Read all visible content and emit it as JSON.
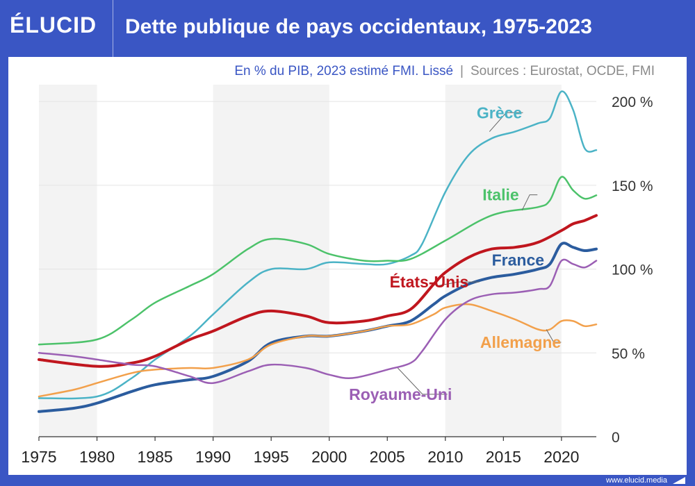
{
  "logo": {
    "text": "ÉLUCID"
  },
  "title": "Dette publique de pays occidentaux, 1975-2023",
  "subtitle": {
    "main": "En % du PIB, 2023 estimé FMI. Lissé",
    "separator": "|",
    "sources": "Sources : Eurostat, OCDE, FMI"
  },
  "footer": {
    "site": "www.elucid.media"
  },
  "colors": {
    "brand": "#3a56c4",
    "greece": "#4bb3c6",
    "italy": "#4cc26a",
    "usa": "#c0161e",
    "france": "#2b5c9e",
    "germany": "#f2a04b",
    "uk": "#9b5fb4"
  },
  "chart_data": {
    "type": "line",
    "title": "Dette publique de pays occidentaux, 1975-2023",
    "subtitle": "En % du PIB, 2023 estimé FMI. Lissé",
    "xlim": [
      1975,
      2023
    ],
    "ylim": [
      0,
      210
    ],
    "x_ticks": [
      1975,
      1980,
      1985,
      1990,
      1995,
      2000,
      2005,
      2010,
      2015,
      2020
    ],
    "x_tick_labels": [
      "1975",
      "1980",
      "1985",
      "1990",
      "1995",
      "2000",
      "2005",
      "2010",
      "2015",
      "2020"
    ],
    "y_ticks": [
      0,
      50,
      100,
      150,
      200
    ],
    "y_tick_labels": [
      "0",
      "50 %",
      "100 %",
      "150 %",
      "200 %"
    ],
    "shaded_periods": [
      [
        1975,
        1980
      ],
      [
        1990,
        2000
      ],
      [
        2010,
        2020
      ]
    ],
    "grid": true,
    "series": [
      {
        "name": "Grèce",
        "color": "#4bb3c6",
        "width": 2.5,
        "points": [
          [
            1975,
            23
          ],
          [
            1980,
            24
          ],
          [
            1983,
            35
          ],
          [
            1985,
            46
          ],
          [
            1988,
            60
          ],
          [
            1990,
            73
          ],
          [
            1993,
            92
          ],
          [
            1995,
            100
          ],
          [
            1998,
            100
          ],
          [
            2000,
            104
          ],
          [
            2003,
            103
          ],
          [
            2005,
            103
          ],
          [
            2007,
            108
          ],
          [
            2008,
            115
          ],
          [
            2010,
            146
          ],
          [
            2012,
            168
          ],
          [
            2014,
            178
          ],
          [
            2016,
            182
          ],
          [
            2018,
            187
          ],
          [
            2019,
            190
          ],
          [
            2020,
            206
          ],
          [
            2021,
            195
          ],
          [
            2022,
            172
          ],
          [
            2023,
            171
          ]
        ]
      },
      {
        "name": "Italie",
        "color": "#4cc26a",
        "width": 2.5,
        "points": [
          [
            1975,
            55
          ],
          [
            1980,
            58
          ],
          [
            1983,
            70
          ],
          [
            1985,
            80
          ],
          [
            1988,
            90
          ],
          [
            1990,
            97
          ],
          [
            1993,
            112
          ],
          [
            1995,
            118
          ],
          [
            1998,
            115
          ],
          [
            2000,
            109
          ],
          [
            2003,
            105
          ],
          [
            2005,
            105
          ],
          [
            2007,
            106
          ],
          [
            2010,
            117
          ],
          [
            2013,
            129
          ],
          [
            2015,
            134
          ],
          [
            2018,
            137
          ],
          [
            2019,
            141
          ],
          [
            2020,
            155
          ],
          [
            2021,
            147
          ],
          [
            2022,
            142
          ],
          [
            2023,
            144
          ]
        ]
      },
      {
        "name": "États-Unis",
        "color": "#c0161e",
        "width": 4,
        "points": [
          [
            1975,
            46
          ],
          [
            1980,
            42
          ],
          [
            1983,
            44
          ],
          [
            1985,
            48
          ],
          [
            1988,
            58
          ],
          [
            1990,
            63
          ],
          [
            1993,
            72
          ],
          [
            1995,
            75
          ],
          [
            1998,
            72
          ],
          [
            2000,
            68
          ],
          [
            2003,
            69
          ],
          [
            2005,
            72
          ],
          [
            2007,
            76
          ],
          [
            2009,
            91
          ],
          [
            2010,
            98
          ],
          [
            2012,
            107
          ],
          [
            2014,
            112
          ],
          [
            2016,
            113
          ],
          [
            2018,
            116
          ],
          [
            2020,
            123
          ],
          [
            2021,
            127
          ],
          [
            2022,
            129
          ],
          [
            2023,
            132
          ]
        ]
      },
      {
        "name": "France",
        "color": "#2b5c9e",
        "width": 4,
        "points": [
          [
            1975,
            15
          ],
          [
            1978,
            17
          ],
          [
            1980,
            20
          ],
          [
            1983,
            27
          ],
          [
            1985,
            31
          ],
          [
            1988,
            34
          ],
          [
            1990,
            36
          ],
          [
            1993,
            45
          ],
          [
            1995,
            56
          ],
          [
            1998,
            60
          ],
          [
            2000,
            60
          ],
          [
            2003,
            63
          ],
          [
            2005,
            66
          ],
          [
            2007,
            69
          ],
          [
            2009,
            79
          ],
          [
            2010,
            84
          ],
          [
            2012,
            91
          ],
          [
            2014,
            95
          ],
          [
            2016,
            97
          ],
          [
            2018,
            100
          ],
          [
            2019,
            103
          ],
          [
            2020,
            115
          ],
          [
            2021,
            113
          ],
          [
            2022,
            111
          ],
          [
            2023,
            112
          ]
        ]
      },
      {
        "name": "Allemagne",
        "color": "#f2a04b",
        "width": 2.5,
        "points": [
          [
            1975,
            24
          ],
          [
            1978,
            28
          ],
          [
            1980,
            32
          ],
          [
            1983,
            38
          ],
          [
            1985,
            40
          ],
          [
            1988,
            41
          ],
          [
            1990,
            41
          ],
          [
            1993,
            46
          ],
          [
            1995,
            55
          ],
          [
            1998,
            60
          ],
          [
            2000,
            60
          ],
          [
            2003,
            63
          ],
          [
            2005,
            66
          ],
          [
            2007,
            67
          ],
          [
            2009,
            73
          ],
          [
            2010,
            77
          ],
          [
            2012,
            79
          ],
          [
            2014,
            75
          ],
          [
            2016,
            70
          ],
          [
            2018,
            64
          ],
          [
            2019,
            64
          ],
          [
            2020,
            69
          ],
          [
            2021,
            69
          ],
          [
            2022,
            66
          ],
          [
            2023,
            67
          ]
        ]
      },
      {
        "name": "Royaume-Uni",
        "color": "#9b5fb4",
        "width": 2.5,
        "points": [
          [
            1975,
            50
          ],
          [
            1978,
            48
          ],
          [
            1980,
            46
          ],
          [
            1983,
            43
          ],
          [
            1985,
            42
          ],
          [
            1988,
            36
          ],
          [
            1990,
            32
          ],
          [
            1993,
            39
          ],
          [
            1995,
            43
          ],
          [
            1998,
            41
          ],
          [
            2000,
            37
          ],
          [
            2002,
            35
          ],
          [
            2005,
            40
          ],
          [
            2007,
            44
          ],
          [
            2008,
            51
          ],
          [
            2010,
            70
          ],
          [
            2012,
            81
          ],
          [
            2014,
            85
          ],
          [
            2016,
            86
          ],
          [
            2018,
            88
          ],
          [
            2019,
            90
          ],
          [
            2020,
            105
          ],
          [
            2021,
            103
          ],
          [
            2022,
            101
          ],
          [
            2023,
            105
          ]
        ]
      }
    ],
    "annotations": [
      {
        "series": "Grèce",
        "text": "Grèce",
        "color": "#4bb3c6",
        "x": 2012.7,
        "y": 190,
        "anchor": [
          2013.8,
          182
        ]
      },
      {
        "series": "Italie",
        "text": "Italie",
        "color": "#4cc26a",
        "x": 2013.2,
        "y": 141,
        "anchor": [
          2016.6,
          135
        ]
      },
      {
        "series": "États-Unis",
        "text": "États-Unis",
        "color": "#c0161e",
        "x": 2005.2,
        "y": 89,
        "anchor": [
          2009.3,
          90
        ]
      },
      {
        "series": "France",
        "text": "France",
        "color": "#2b5c9e",
        "x": 2014.0,
        "y": 102,
        "anchor": null
      },
      {
        "series": "Allemagne",
        "text": "Allemagne",
        "color": "#f2a04b",
        "x": 2013.0,
        "y": 53,
        "anchor": [
          2018.7,
          64
        ]
      },
      {
        "series": "Royaume-Uni",
        "text": "Royaume-Uni",
        "color": "#9b5fb4",
        "x": 2001.7,
        "y": 22,
        "anchor": [
          2005.9,
          41
        ]
      }
    ]
  }
}
